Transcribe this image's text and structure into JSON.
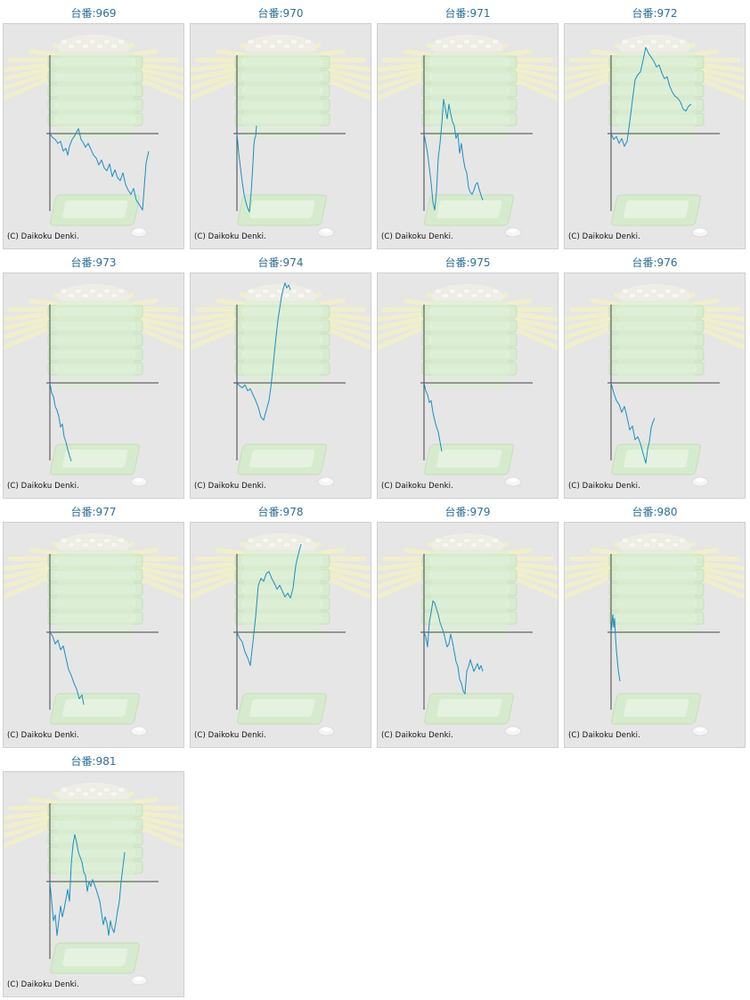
{
  "colors": {
    "line": "#1a8fc0",
    "axis": "#444444",
    "title": "#2e6f97",
    "background": "#e6e6e6",
    "border": "#cfcfcf"
  },
  "chart_data": [
    {
      "type": "line",
      "title": "台番:969",
      "footer": "(C) Daikoku Denki.",
      "x": [
        0,
        3,
        6,
        9,
        12,
        15,
        18,
        20,
        22,
        25,
        28,
        32,
        35,
        38,
        40,
        43,
        46,
        49,
        52,
        55,
        58,
        61,
        64,
        67,
        70,
        73,
        76,
        79,
        82,
        85,
        88,
        91,
        94,
        97,
        100,
        104,
        108,
        111
      ],
      "y": [
        0,
        -4,
        -6,
        -10,
        -8,
        -18,
        -15,
        -22,
        -13,
        -6,
        -2,
        5,
        -6,
        -10,
        -14,
        -10,
        -16,
        -22,
        -25,
        -32,
        -27,
        -35,
        -38,
        -31,
        -44,
        -37,
        -45,
        -48,
        -40,
        -52,
        -58,
        -62,
        -56,
        -68,
        -72,
        -78,
        -30,
        -18
      ]
    },
    {
      "type": "line",
      "title": "台番:970",
      "footer": "(C) Daikoku Denki.",
      "x": [
        0,
        2,
        4,
        6,
        8,
        10,
        12,
        14,
        16,
        18,
        19,
        20,
        21,
        22
      ],
      "y": [
        0,
        -20,
        -35,
        -50,
        -62,
        -70,
        -76,
        -80,
        -60,
        -30,
        -12,
        -5,
        -3,
        8
      ]
    },
    {
      "type": "line",
      "title": "台番:971",
      "footer": "(C) Daikoku Denki.",
      "x": [
        0,
        2,
        4,
        6,
        8,
        10,
        12,
        14,
        16,
        18,
        20,
        22,
        24,
        26,
        28,
        30,
        32,
        34,
        36,
        38,
        40,
        42,
        44,
        46,
        48,
        50,
        52,
        54,
        56,
        58,
        60,
        62,
        64,
        66
      ],
      "y": [
        0,
        -10,
        -20,
        -35,
        -50,
        -70,
        -78,
        -60,
        -25,
        -10,
        10,
        35,
        25,
        15,
        30,
        20,
        12,
        8,
        -5,
        0,
        -20,
        -10,
        -25,
        -35,
        -40,
        -55,
        -60,
        -62,
        -58,
        -52,
        -50,
        -57,
        -63,
        -68
      ]
    },
    {
      "type": "line",
      "title": "台番:972",
      "footer": "(C) Daikoku Denki.",
      "x": [
        0,
        3,
        6,
        9,
        12,
        15,
        18,
        21,
        24,
        27,
        30,
        33,
        36,
        39,
        42,
        45,
        48,
        51,
        54,
        57,
        60,
        63,
        66,
        69,
        72,
        75,
        78,
        81,
        84,
        87,
        90
      ],
      "y": [
        0,
        -6,
        -3,
        -10,
        -5,
        -13,
        -8,
        12,
        34,
        55,
        60,
        63,
        75,
        88,
        82,
        78,
        74,
        68,
        70,
        62,
        56,
        58,
        48,
        42,
        38,
        36,
        32,
        25,
        23,
        28,
        30
      ]
    },
    {
      "type": "line",
      "title": "台番:973",
      "footer": "(C) Daikoku Denki.",
      "x": [
        0,
        2,
        4,
        6,
        8,
        10,
        12,
        14,
        16,
        18,
        20,
        22,
        24
      ],
      "y": [
        0,
        -10,
        -14,
        -24,
        -28,
        -34,
        -45,
        -42,
        -55,
        -60,
        -68,
        -74,
        -80
      ]
    },
    {
      "type": "line",
      "title": "台番:974",
      "footer": "(C) Daikoku Denki.",
      "x": [
        0,
        3,
        6,
        9,
        12,
        15,
        18,
        21,
        24,
        27,
        30,
        33,
        36,
        38,
        40,
        42,
        44,
        46,
        48,
        50,
        52,
        54,
        56,
        58,
        60
      ],
      "y": [
        0,
        -3,
        -5,
        -2,
        -8,
        -6,
        -12,
        -18,
        -25,
        -35,
        -38,
        -28,
        -18,
        -5,
        12,
        30,
        48,
        64,
        76,
        88,
        96,
        102,
        97,
        100,
        95
      ]
    },
    {
      "type": "line",
      "title": "台番:975",
      "footer": "(C) Daikoku Denki.",
      "x": [
        0,
        2,
        4,
        6,
        8,
        10,
        12,
        14,
        16,
        18,
        20
      ],
      "y": [
        0,
        -8,
        -12,
        -20,
        -18,
        -30,
        -38,
        -45,
        -50,
        -60,
        -70
      ]
    },
    {
      "type": "line",
      "title": "台番:976",
      "footer": "(C) Daikoku Denki.",
      "x": [
        0,
        3,
        6,
        9,
        12,
        15,
        18,
        21,
        24,
        27,
        30,
        33,
        36,
        39,
        41,
        43,
        45,
        47,
        49
      ],
      "y": [
        0,
        -10,
        -18,
        -22,
        -30,
        -24,
        -35,
        -48,
        -44,
        -58,
        -55,
        -62,
        -72,
        -82,
        -68,
        -60,
        -46,
        -40,
        -36
      ]
    },
    {
      "type": "line",
      "title": "台番:977",
      "footer": "(C) Daikoku Denki.",
      "x": [
        0,
        3,
        6,
        9,
        12,
        15,
        18,
        21,
        24,
        27,
        30,
        33,
        36,
        38
      ],
      "y": [
        0,
        -4,
        -12,
        -8,
        -18,
        -14,
        -26,
        -38,
        -44,
        -52,
        -58,
        -68,
        -64,
        -74
      ]
    },
    {
      "type": "line",
      "title": "台番:978",
      "footer": "(C) Daikoku Denki.",
      "x": [
        0,
        3,
        6,
        9,
        12,
        15,
        18,
        21,
        24,
        27,
        30,
        33,
        36,
        39,
        42,
        45,
        48,
        51,
        54,
        57,
        60,
        63,
        66,
        69,
        72
      ],
      "y": [
        0,
        -6,
        -10,
        -20,
        -26,
        -34,
        -10,
        16,
        48,
        55,
        52,
        60,
        62,
        55,
        50,
        44,
        48,
        42,
        36,
        40,
        35,
        45,
        68,
        80,
        90
      ]
    },
    {
      "type": "line",
      "title": "台番:979",
      "footer": "(C) Daikoku Denki.",
      "x": [
        0,
        2,
        4,
        6,
        8,
        10,
        12,
        14,
        16,
        18,
        20,
        22,
        24,
        26,
        28,
        30,
        32,
        34,
        36,
        38,
        40,
        42,
        44,
        46,
        48,
        50,
        52,
        54,
        56,
        58,
        60,
        62,
        64,
        66
      ],
      "y": [
        0,
        -5,
        -15,
        10,
        20,
        32,
        30,
        24,
        18,
        10,
        5,
        0,
        -8,
        -15,
        -12,
        -2,
        -10,
        -20,
        -30,
        -35,
        -48,
        -52,
        -60,
        -63,
        -40,
        -35,
        -28,
        -34,
        -40,
        -36,
        -32,
        -38,
        -34,
        -40
      ]
    },
    {
      "type": "line",
      "title": "台番:980",
      "footer": "(C) Daikoku Denki.",
      "x": [
        0,
        1,
        2,
        3,
        4,
        5,
        6,
        7,
        8,
        9,
        10
      ],
      "y": [
        0,
        8,
        18,
        5,
        14,
        -5,
        -18,
        -28,
        -38,
        -44,
        -50
      ]
    },
    {
      "type": "line",
      "title": "台番:981",
      "footer": "(C) Daikoku Denki.",
      "x": [
        0,
        2,
        4,
        6,
        8,
        10,
        12,
        14,
        16,
        18,
        20,
        22,
        24,
        26,
        28,
        30,
        32,
        34,
        36,
        38,
        40,
        42,
        44,
        46,
        48,
        50,
        52,
        54,
        56,
        58,
        60,
        62,
        64,
        66,
        68,
        70,
        72,
        74,
        76,
        78,
        80,
        82,
        84
      ],
      "y": [
        0,
        -20,
        -40,
        -34,
        -55,
        -40,
        -25,
        -36,
        -28,
        -18,
        -8,
        -20,
        18,
        38,
        48,
        40,
        30,
        25,
        20,
        10,
        6,
        -10,
        0,
        -5,
        2,
        -3,
        -8,
        -14,
        -20,
        -32,
        -44,
        -36,
        -42,
        -55,
        -40,
        -48,
        -52,
        -42,
        -30,
        -20,
        0,
        15,
        30
      ]
    }
  ]
}
